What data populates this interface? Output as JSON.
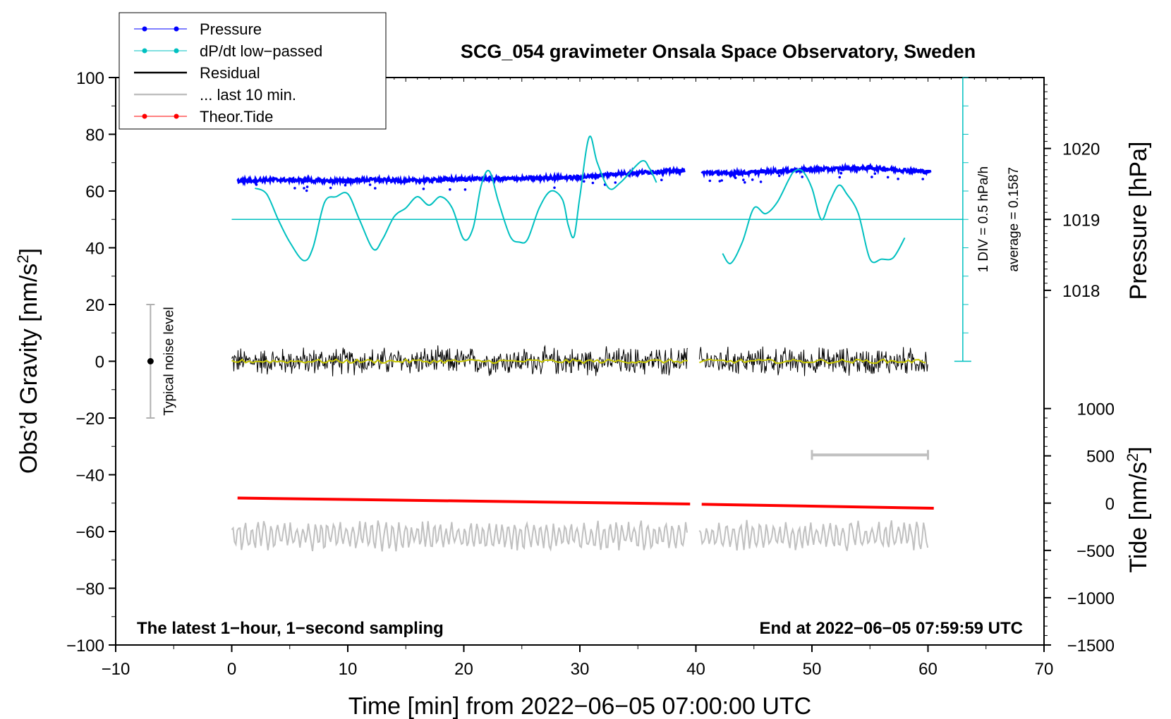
{
  "chart_data": {
    "type": "line",
    "title": "SCG_054 gravimeter Onsala Space Observatory, Sweden",
    "xlabel": "Time [min] from 2022−06−05 07:00:00 UTC",
    "ylabel_left": "Obs’d Gravity [nm/s",
    "ylabel_left_sup": "2",
    "ylabel_left_end": "]",
    "ylabel_right_top": "Pressure [hPa]",
    "ylabel_right_bottom": "Tide [nm/s",
    "ylabel_right_bottom_sup": "2",
    "ylabel_right_bottom_end": "]",
    "xlim": [
      -10,
      70
    ],
    "ylim": [
      -100,
      100
    ],
    "x_ticks": [
      -10,
      0,
      10,
      20,
      30,
      40,
      50,
      60,
      70
    ],
    "x_tick_labels": [
      "−10",
      "0",
      "10",
      "20",
      "30",
      "40",
      "50",
      "60",
      "70"
    ],
    "y_ticks": [
      -100,
      -80,
      -60,
      -40,
      -20,
      0,
      20,
      40,
      60,
      80,
      100
    ],
    "y_tick_labels": [
      "−100",
      "−80",
      "−60",
      "−40",
      "−20",
      "0",
      "20",
      "40",
      "60",
      "80",
      "100"
    ],
    "pressure_axis": {
      "ticks": [
        1018,
        1019,
        1020
      ],
      "tick_labels": [
        "1018",
        "1019",
        "1020"
      ],
      "gravity_of_1019": 50,
      "gravity_per_hPa": 25
    },
    "tide_axis": {
      "ticks": [
        -1500,
        -1000,
        -500,
        0,
        500,
        1000
      ],
      "tick_labels": [
        "−1500",
        "−1000",
        "−500",
        "0",
        "500",
        "1000"
      ],
      "gravity_of_zero": -50,
      "gravity_per_1000": 33.33
    },
    "legend": [
      {
        "label": "Pressure",
        "color": "#0000ff",
        "marker": true
      },
      {
        "label": "dP/dt low−passed",
        "color": "#00c0c0",
        "marker": true
      },
      {
        "label": "Residual",
        "color": "#000000",
        "marker": false
      },
      {
        "label": "... last 10 min.",
        "color": "#c0c0c0",
        "marker": false
      },
      {
        "label": "Theor.Tide",
        "color": "#ff0000",
        "marker": true
      }
    ],
    "series": [
      {
        "name": "Pressure",
        "color": "#0000ff",
        "segments": [
          {
            "x": [
              0.5,
              3,
              6,
              9,
              12,
              15,
              18,
              21,
              24,
              27,
              30,
              33,
              36,
              39
            ],
            "y": [
              63.5,
              64,
              63.8,
              63.5,
              64,
              63.6,
              64,
              64.3,
              64.3,
              64.6,
              64.8,
              66,
              66.7,
              67.2
            ]
          },
          {
            "x": [
              40.5,
              43,
              46,
              49,
              52,
              55,
              58,
              60.2
            ],
            "y": [
              66.5,
              66.2,
              66.8,
              67.5,
              67.8,
              68.2,
              67.3,
              66.8
            ]
          }
        ]
      },
      {
        "name": "dP/dt low-passed",
        "color": "#00c0c0",
        "segments": [
          {
            "x": [
              2,
              3,
              4,
              5,
              6.2,
              7,
              8,
              9,
              10,
              11,
              12.2,
              13,
              14,
              15,
              16,
              17,
              18,
              19,
              20,
              20.8,
              21.5,
              22.2,
              23,
              24,
              24.8,
              25.5,
              26.5,
              27.5,
              28.5,
              29,
              29.5,
              30,
              30.8,
              31.5,
              32.5,
              33.5,
              35.3,
              36,
              36.6
            ],
            "y": [
              61,
              59,
              50,
              42,
              35.5,
              40,
              56,
              58,
              59,
              50,
              39.5,
              43,
              51,
              54,
              58,
              55,
              58,
              54,
              43,
              47,
              62,
              67,
              56,
              44,
              42,
              43,
              54,
              60,
              57,
              48,
              44,
              58,
              79,
              70,
              61,
              63,
              70.5,
              68,
              63
            ]
          },
          {
            "x": [
              42.3,
              43,
              44,
              45,
              46,
              47,
              48,
              48.5,
              49.2,
              50,
              50.8,
              51.5,
              52.3,
              53,
              54,
              55,
              56,
              57,
              58
            ],
            "y": [
              38,
              34.5,
              42,
              54,
              52,
              56,
              64,
              67,
              67,
              61,
              50,
              56,
              62,
              59,
              52,
              36,
              36,
              36.5,
              43.5
            ]
          }
        ],
        "average_line": {
          "x": [
            0,
            63
          ],
          "y": [
            50,
            50
          ]
        }
      },
      {
        "name": "Residual",
        "color": "#000000",
        "segments": [
          {
            "x": [
              0,
              39.3
            ],
            "y": [
              0,
              0
            ],
            "spread": 4.5
          },
          {
            "x": [
              40.3,
              60
            ],
            "y": [
              0,
              0
            ],
            "spread": 4.5
          }
        ]
      },
      {
        "name": "... last 10 min.",
        "color": "#c0c0c0",
        "segments": [
          {
            "x": [
              0,
              39.3
            ],
            "y": [
              -61.5,
              -61.5
            ],
            "spread": 4
          },
          {
            "x": [
              40.3,
              60
            ],
            "y": [
              -61.5,
              -61.5
            ],
            "spread": 4
          }
        ]
      },
      {
        "name": "Theor.Tide",
        "color": "#ff0000",
        "segments": [
          {
            "x": [
              0.5,
              39.5
            ],
            "y": [
              -48.2,
              -50.3
            ]
          },
          {
            "x": [
              40.5,
              60.5
            ],
            "y": [
              -50.4,
              -51.8
            ]
          }
        ]
      }
    ],
    "noise_level": {
      "label": "Typical noise level",
      "x": -7,
      "y_low": -20,
      "y_high": 20,
      "center": 0
    },
    "scale_bar": {
      "x": 63,
      "y_low": 0,
      "y_high": 100,
      "label": "1 DIV = 0.5 hPa/h",
      "average_label": "average = 0.1587"
    },
    "window_bar": {
      "x_start": 50,
      "x_end": 60,
      "y": -33
    },
    "footer_left": "The latest 1−hour, 1−second sampling",
    "footer_right": "End at 2022−06−05 07:59:59 UTC"
  }
}
